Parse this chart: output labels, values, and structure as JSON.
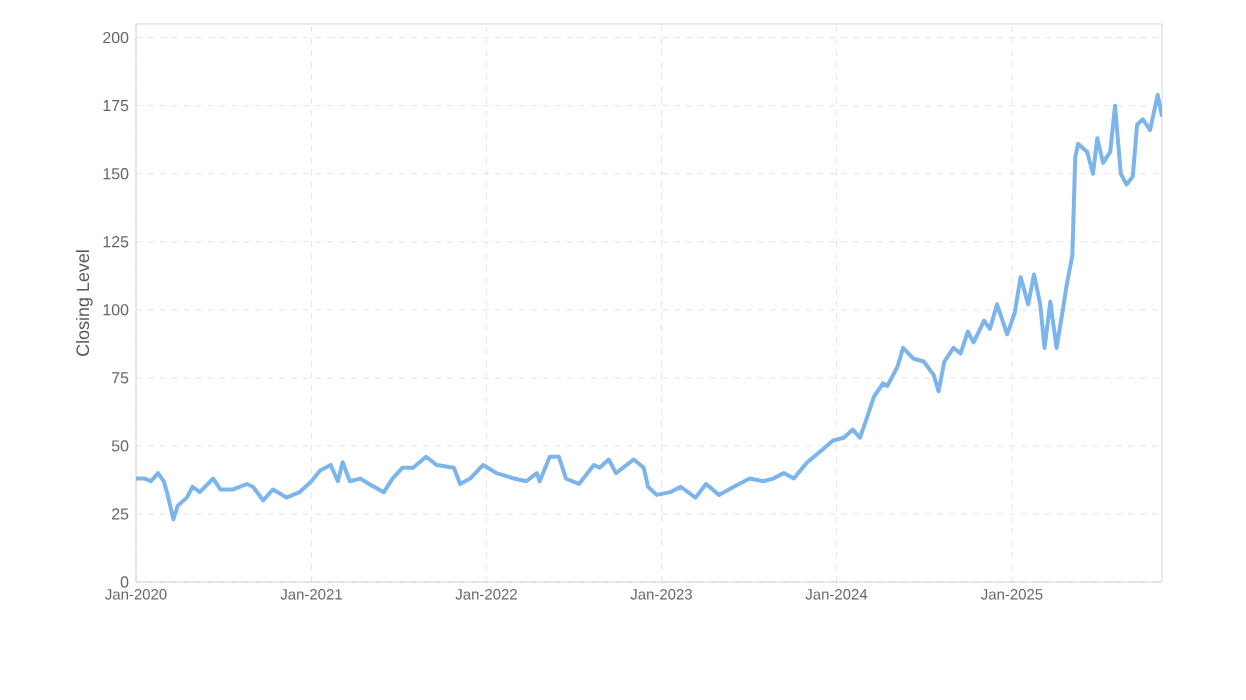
{
  "chart_data": {
    "type": "line",
    "ylabel": "Closing Level",
    "xlim": [
      "2020-01-01",
      "2025-11-10"
    ],
    "xticks": [
      {
        "value": "2020-01-01",
        "label": "Jan-2020"
      },
      {
        "value": "2021-01-01",
        "label": "Jan-2021"
      },
      {
        "value": "2022-01-01",
        "label": "Jan-2022"
      },
      {
        "value": "2023-01-01",
        "label": "Jan-2023"
      },
      {
        "value": "2024-01-01",
        "label": "Jan-2024"
      },
      {
        "value": "2025-01-01",
        "label": "Jan-2025"
      }
    ],
    "ylim": [
      0,
      205
    ],
    "yticks": [
      0,
      25,
      50,
      75,
      100,
      125,
      150,
      175,
      200
    ],
    "grid": true,
    "marker": "none",
    "line_style": "solid",
    "series": [
      {
        "color": "#7cb5ec",
        "x": [
          "2020-01-01",
          "2020-01-19",
          "2020-02-01",
          "2020-02-16",
          "2020-02-28",
          "2020-03-07",
          "2020-03-19",
          "2020-03-28",
          "2020-04-16",
          "2020-04-28",
          "2020-05-13",
          "2020-06-04",
          "2020-06-10",
          "2020-06-25",
          "2020-07-22",
          "2020-08-19",
          "2020-09-01",
          "2020-09-22",
          "2020-10-13",
          "2020-11-10",
          "2020-12-07",
          "2021-01-01",
          "2021-01-19",
          "2021-02-10",
          "2021-02-25",
          "2021-03-07",
          "2021-03-22",
          "2021-04-13",
          "2021-05-01",
          "2021-06-01",
          "2021-06-19",
          "2021-07-10",
          "2021-08-01",
          "2021-08-28",
          "2021-09-19",
          "2021-10-25",
          "2021-11-07",
          "2021-11-28",
          "2021-12-25",
          "2022-01-22",
          "2022-02-28",
          "2022-03-25",
          "2022-04-16",
          "2022-04-22",
          "2022-05-13",
          "2022-06-01",
          "2022-06-16",
          "2022-07-13",
          "2022-08-13",
          "2022-08-25",
          "2022-09-13",
          "2022-09-28",
          "2022-11-04",
          "2022-11-25",
          "2022-12-04",
          "2022-12-22",
          "2023-01-19",
          "2023-02-10",
          "2023-03-13",
          "2023-04-04",
          "2023-05-01",
          "2023-06-01",
          "2023-07-04",
          "2023-08-01",
          "2023-08-22",
          "2023-09-13",
          "2023-10-04",
          "2023-11-01",
          "2023-11-22",
          "2023-12-25",
          "2024-01-16",
          "2024-02-04",
          "2024-02-19",
          "2024-03-04",
          "2024-03-19",
          "2024-04-07",
          "2024-04-16",
          "2024-05-07",
          "2024-05-19",
          "2024-06-10",
          "2024-07-01",
          "2024-07-22",
          "2024-08-01",
          "2024-08-13",
          "2024-09-01",
          "2024-09-16",
          "2024-10-01",
          "2024-10-13",
          "2024-11-04",
          "2024-11-16",
          "2024-12-01",
          "2024-12-22",
          "2025-01-07",
          "2025-01-19",
          "2025-02-04",
          "2025-02-16",
          "2025-03-01",
          "2025-03-10",
          "2025-03-22",
          "2025-04-04",
          "2025-04-19",
          "2025-04-25",
          "2025-05-07",
          "2025-05-13",
          "2025-05-19",
          "2025-06-07",
          "2025-06-19",
          "2025-06-28",
          "2025-07-10",
          "2025-07-25",
          "2025-08-04",
          "2025-08-16",
          "2025-08-28",
          "2025-09-10",
          "2025-09-19",
          "2025-10-01",
          "2025-10-16",
          "2025-11-01",
          "2025-11-10"
        ],
        "values": [
          38,
          38,
          37,
          40,
          37,
          32,
          23,
          28,
          31,
          35,
          33,
          37,
          38,
          34,
          34,
          36,
          35,
          30,
          34,
          31,
          33,
          37,
          41,
          43,
          37,
          44,
          37,
          38,
          36,
          33,
          38,
          42,
          42,
          46,
          43,
          42,
          36,
          38,
          43,
          40,
          38,
          37,
          40,
          37,
          46,
          46,
          38,
          36,
          43,
          42,
          45,
          40,
          45,
          42,
          35,
          32,
          33,
          35,
          31,
          36,
          32,
          35,
          38,
          37,
          38,
          40,
          38,
          44,
          47,
          52,
          53,
          56,
          53,
          60,
          68,
          73,
          72,
          79,
          86,
          82,
          81,
          76,
          70,
          81,
          86,
          84,
          92,
          88,
          96,
          93,
          102,
          91,
          99,
          112,
          102,
          113,
          102,
          86,
          103,
          86,
          102,
          109,
          120,
          156,
          161,
          158,
          150,
          163,
          154,
          158,
          175,
          150,
          146,
          149,
          168,
          170,
          166,
          179,
          171
        ]
      }
    ]
  }
}
